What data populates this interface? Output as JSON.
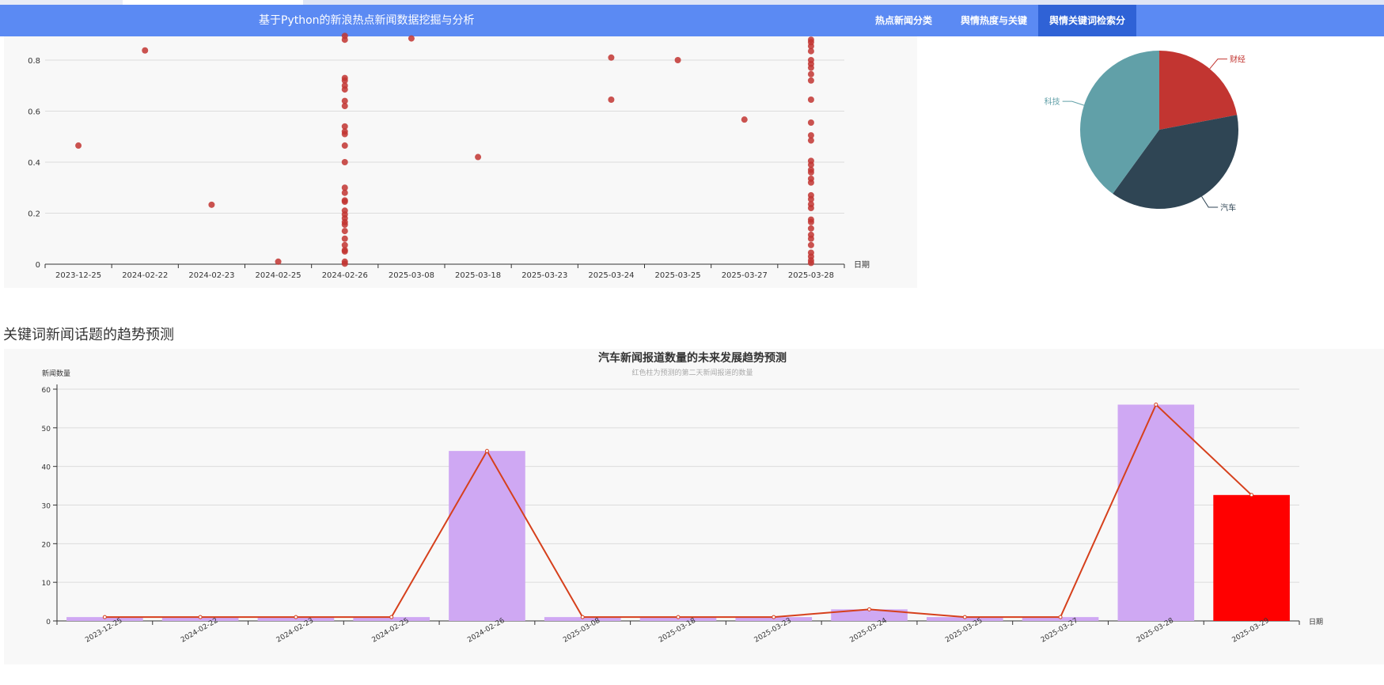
{
  "navbar": {
    "brand": "基于Python的新浪热点新闻数据挖掘与分析",
    "items": [
      {
        "label": "热点新闻分类",
        "active": false
      },
      {
        "label": "舆情热度与关键词分析",
        "active": false
      },
      {
        "label": "舆情关键词检索分析",
        "active": true
      }
    ]
  },
  "section": {
    "title": "关键词新闻话题的趋势预测"
  },
  "colors": {
    "navbar": "#5b8af3",
    "nav_active": "#2f62d6",
    "scatter_point": "#c23531",
    "bar": "#cfa8f3",
    "bar_predicted": "#ff0000",
    "line": "#d6401c"
  },
  "chart_data": [
    {
      "type": "scatter",
      "title": "",
      "xlabel": "日期",
      "ylabel": "",
      "categories": [
        "2023-12-25",
        "2024-02-22",
        "2024-02-23",
        "2024-02-25",
        "2024-02-26",
        "2025-03-08",
        "2025-03-18",
        "2025-03-23",
        "2025-03-24",
        "2025-03-25",
        "2025-03-27",
        "2025-03-28"
      ],
      "ylim": [
        0,
        0.9
      ],
      "yticks": [
        0,
        0.2,
        0.4,
        0.6,
        0.8
      ],
      "grid": true,
      "points": [
        {
          "x": "2023-12-25",
          "y": 0.465
        },
        {
          "x": "2024-02-22",
          "y": 0.838
        },
        {
          "x": "2024-02-23",
          "y": 0.233
        },
        {
          "x": "2024-02-25",
          "y": 0.01
        },
        {
          "x": "2024-02-26",
          "y": 0.895
        },
        {
          "x": "2024-02-26",
          "y": 0.88
        },
        {
          "x": "2024-02-26",
          "y": 0.73
        },
        {
          "x": "2024-02-26",
          "y": 0.72
        },
        {
          "x": "2024-02-26",
          "y": 0.7
        },
        {
          "x": "2024-02-26",
          "y": 0.685
        },
        {
          "x": "2024-02-26",
          "y": 0.64
        },
        {
          "x": "2024-02-26",
          "y": 0.62
        },
        {
          "x": "2024-02-26",
          "y": 0.54
        },
        {
          "x": "2024-02-26",
          "y": 0.52
        },
        {
          "x": "2024-02-26",
          "y": 0.51
        },
        {
          "x": "2024-02-26",
          "y": 0.465
        },
        {
          "x": "2024-02-26",
          "y": 0.4
        },
        {
          "x": "2024-02-26",
          "y": 0.3
        },
        {
          "x": "2024-02-26",
          "y": 0.28
        },
        {
          "x": "2024-02-26",
          "y": 0.25
        },
        {
          "x": "2024-02-26",
          "y": 0.245
        },
        {
          "x": "2024-02-26",
          "y": 0.21
        },
        {
          "x": "2024-02-26",
          "y": 0.195
        },
        {
          "x": "2024-02-26",
          "y": 0.18
        },
        {
          "x": "2024-02-26",
          "y": 0.165
        },
        {
          "x": "2024-02-26",
          "y": 0.155
        },
        {
          "x": "2024-02-26",
          "y": 0.13
        },
        {
          "x": "2024-02-26",
          "y": 0.1
        },
        {
          "x": "2024-02-26",
          "y": 0.075
        },
        {
          "x": "2024-02-26",
          "y": 0.055
        },
        {
          "x": "2024-02-26",
          "y": 0.05
        },
        {
          "x": "2024-02-26",
          "y": 0.01
        },
        {
          "x": "2024-02-26",
          "y": 0.002
        },
        {
          "x": "2025-03-08",
          "y": 0.885
        },
        {
          "x": "2025-03-18",
          "y": 0.42
        },
        {
          "x": "2025-03-24",
          "y": 0.81
        },
        {
          "x": "2025-03-24",
          "y": 0.645
        },
        {
          "x": "2025-03-25",
          "y": 0.8
        },
        {
          "x": "2025-03-27",
          "y": 0.567
        },
        {
          "x": "2025-03-28",
          "y": 0.88
        },
        {
          "x": "2025-03-28",
          "y": 0.87
        },
        {
          "x": "2025-03-28",
          "y": 0.855
        },
        {
          "x": "2025-03-28",
          "y": 0.835
        },
        {
          "x": "2025-03-28",
          "y": 0.8
        },
        {
          "x": "2025-03-28",
          "y": 0.785
        },
        {
          "x": "2025-03-28",
          "y": 0.77
        },
        {
          "x": "2025-03-28",
          "y": 0.745
        },
        {
          "x": "2025-03-28",
          "y": 0.72
        },
        {
          "x": "2025-03-28",
          "y": 0.645
        },
        {
          "x": "2025-03-28",
          "y": 0.555
        },
        {
          "x": "2025-03-28",
          "y": 0.505
        },
        {
          "x": "2025-03-28",
          "y": 0.485
        },
        {
          "x": "2025-03-28",
          "y": 0.405
        },
        {
          "x": "2025-03-28",
          "y": 0.39
        },
        {
          "x": "2025-03-28",
          "y": 0.37
        },
        {
          "x": "2025-03-28",
          "y": 0.36
        },
        {
          "x": "2025-03-28",
          "y": 0.335
        },
        {
          "x": "2025-03-28",
          "y": 0.32
        },
        {
          "x": "2025-03-28",
          "y": 0.27
        },
        {
          "x": "2025-03-28",
          "y": 0.255
        },
        {
          "x": "2025-03-28",
          "y": 0.235
        },
        {
          "x": "2025-03-28",
          "y": 0.22
        },
        {
          "x": "2025-03-28",
          "y": 0.175
        },
        {
          "x": "2025-03-28",
          "y": 0.165
        },
        {
          "x": "2025-03-28",
          "y": 0.14
        },
        {
          "x": "2025-03-28",
          "y": 0.115
        },
        {
          "x": "2025-03-28",
          "y": 0.1
        },
        {
          "x": "2025-03-28",
          "y": 0.075
        },
        {
          "x": "2025-03-28",
          "y": 0.045
        },
        {
          "x": "2025-03-28",
          "y": 0.03
        },
        {
          "x": "2025-03-28",
          "y": 0.015
        },
        {
          "x": "2025-03-28",
          "y": 0.005
        }
      ]
    },
    {
      "type": "pie",
      "title": "",
      "slices": [
        {
          "label": "财经",
          "value": 22,
          "color": "#c23531"
        },
        {
          "label": "汽车",
          "value": 38,
          "color": "#2f4554"
        },
        {
          "label": "科技",
          "value": 40,
          "color": "#61a0a8"
        }
      ]
    },
    {
      "type": "bar",
      "title": "汽车新闻报道数量的未来发展趋势预测",
      "subtitle": "红色柱为预测的第二天新闻报道的数量",
      "xlabel": "日期",
      "ylabel": "新闻数量",
      "ylim": [
        0,
        60
      ],
      "yticks": [
        0,
        10,
        20,
        30,
        40,
        50,
        60
      ],
      "grid": true,
      "categories": [
        "2023-12-25",
        "2024-02-22",
        "2024-02-23",
        "2024-02-25",
        "2024-02-26",
        "2025-03-08",
        "2025-03-18",
        "2025-03-23",
        "2025-03-24",
        "2025-03-25",
        "2025-03-27",
        "2025-03-28",
        "2025-03-29"
      ],
      "values": [
        1,
        1,
        1,
        1,
        44,
        1,
        1,
        1,
        3,
        1,
        1,
        56,
        32.6
      ],
      "predicted_index": 12,
      "line": {
        "values": [
          1,
          1,
          1,
          1,
          44,
          1,
          1,
          1,
          3,
          1,
          1,
          56,
          32.6
        ]
      }
    }
  ]
}
